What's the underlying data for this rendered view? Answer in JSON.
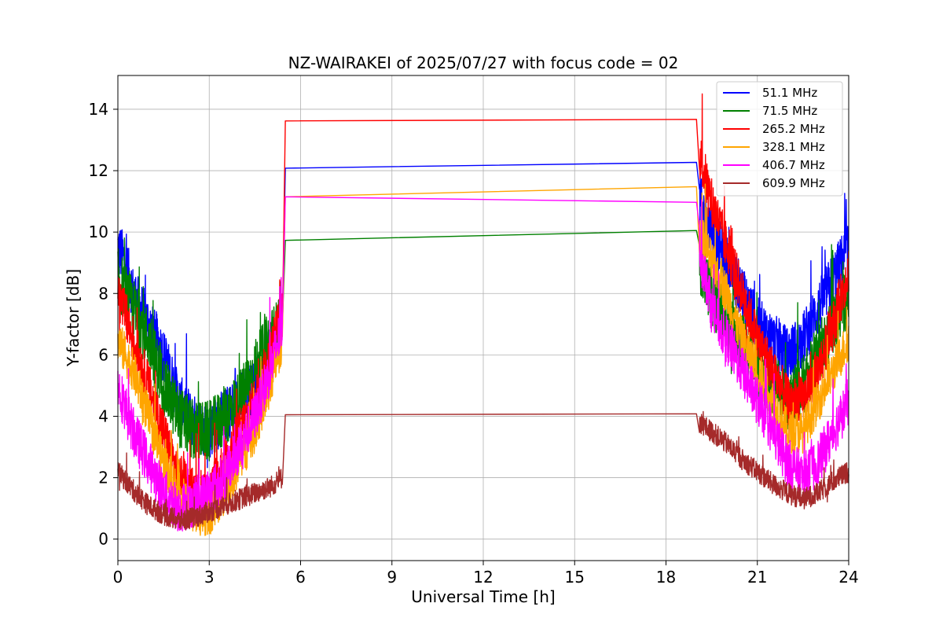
{
  "chart_data": {
    "type": "line",
    "title": "NZ-WAIRAKEI of 2025/07/27 with focus code = 02",
    "xlabel": "Universal Time [h]",
    "ylabel": "Y-factor [dB]",
    "xlim": [
      0,
      24
    ],
    "ylim": [
      -0.7,
      15.1
    ],
    "xticks": [
      0,
      3,
      6,
      9,
      12,
      15,
      18,
      21,
      24
    ],
    "yticks": [
      0,
      2,
      4,
      6,
      8,
      10,
      12,
      14
    ],
    "grid": true,
    "legend_position": "top-right",
    "series": [
      {
        "name": " 51.1 MHz",
        "color": "#0000ff",
        "amp": 0.9,
        "x": [
          0,
          0.25,
          0.5,
          1,
          1.5,
          2,
          2.5,
          3,
          3.5,
          4,
          4.5,
          5,
          5.4,
          5.5,
          19.0,
          19.1,
          19.5,
          20,
          20.5,
          21,
          21.5,
          22,
          22.5,
          23,
          23.5,
          24
        ],
        "y": [
          9.5,
          9.0,
          8.0,
          7.0,
          6.0,
          4.5,
          3.8,
          3.5,
          4.0,
          4.5,
          5.0,
          6.0,
          7.5,
          12.08,
          12.27,
          11.0,
          10.0,
          9.0,
          8.0,
          7.0,
          6.5,
          6.0,
          6.5,
          7.5,
          8.5,
          9.5
        ]
      },
      {
        "name": " 71.5 MHz",
        "color": "#008000",
        "amp": 1.0,
        "x": [
          0,
          0.5,
          1,
          1.5,
          2,
          2.5,
          3,
          3.5,
          4,
          4.5,
          5,
          5.4,
          5.5,
          19.0,
          19.1,
          19.5,
          20,
          20.5,
          21,
          21.5,
          22,
          22.5,
          23,
          23.5,
          24
        ],
        "y": [
          8.5,
          7.5,
          6.5,
          5.0,
          4.0,
          3.5,
          3.5,
          4.0,
          4.5,
          5.5,
          6.5,
          7.0,
          9.73,
          10.05,
          9.0,
          8.0,
          7.0,
          6.5,
          5.5,
          5.0,
          4.5,
          5.0,
          6.0,
          7.0,
          8.0
        ]
      },
      {
        "name": "265.2 MHz",
        "color": "#ff0000",
        "amp": 0.8,
        "x": [
          0,
          0.5,
          1,
          1.5,
          2,
          2.5,
          3,
          3.5,
          4,
          4.5,
          5,
          5.4,
          5.5,
          19.0,
          19.1,
          19.5,
          20,
          20.5,
          21,
          21.5,
          22,
          22.5,
          23,
          23.5,
          24
        ],
        "y": [
          8.0,
          6.5,
          5.0,
          3.5,
          2.0,
          1.5,
          1.5,
          2.5,
          3.5,
          4.5,
          6.0,
          7.5,
          13.62,
          13.67,
          12.5,
          11.0,
          9.5,
          8.0,
          6.5,
          5.5,
          4.5,
          4.5,
          5.5,
          7.0,
          8.8
        ]
      },
      {
        "name": "328.1 MHz",
        "color": "#ffa500",
        "amp": 0.7,
        "x": [
          0,
          0.5,
          1,
          1.5,
          2,
          2.5,
          3,
          3.5,
          4,
          4.5,
          5,
          5.4,
          5.5,
          19.0,
          19.1,
          19.5,
          20,
          20.5,
          21,
          21.5,
          22,
          22.5,
          23,
          23.5,
          24
        ],
        "y": [
          6.5,
          5.5,
          4.0,
          2.5,
          1.5,
          0.8,
          0.8,
          1.5,
          2.5,
          3.5,
          5.0,
          6.5,
          11.15,
          11.48,
          10.0,
          9.0,
          8.0,
          6.5,
          5.5,
          4.5,
          3.5,
          3.5,
          4.5,
          5.5,
          6.5
        ]
      },
      {
        "name": "406.7 MHz",
        "color": "#ff00ff",
        "amp": 0.8,
        "x": [
          0,
          0.5,
          1,
          1.5,
          2,
          2.5,
          3,
          3.5,
          4,
          4.5,
          5,
          5.4,
          5.5,
          19.0,
          19.1,
          19.5,
          20,
          20.5,
          21,
          21.5,
          22,
          22.5,
          23,
          23.5,
          24
        ],
        "y": [
          5.0,
          3.5,
          2.5,
          1.5,
          1.0,
          1.2,
          1.5,
          2.0,
          3.0,
          4.0,
          5.5,
          7.0,
          11.15,
          10.97,
          9.5,
          7.5,
          6.5,
          5.5,
          4.5,
          3.5,
          2.5,
          2.0,
          2.5,
          3.5,
          4.5
        ]
      },
      {
        "name": "609.9 MHz",
        "color": "#a52a2a",
        "amp": 0.35,
        "x": [
          0,
          0.5,
          1,
          1.5,
          2,
          2.5,
          3,
          3.5,
          4,
          4.5,
          5,
          5.4,
          5.5,
          19.0,
          19.1,
          19.5,
          20,
          20.5,
          21,
          21.5,
          22,
          22.5,
          23,
          23.5,
          24
        ],
        "y": [
          2.2,
          1.6,
          1.1,
          0.8,
          0.6,
          0.7,
          0.9,
          1.1,
          1.3,
          1.5,
          1.7,
          2.0,
          4.05,
          4.08,
          3.8,
          3.5,
          3.1,
          2.6,
          2.2,
          1.8,
          1.5,
          1.3,
          1.5,
          1.9,
          2.2
        ]
      }
    ]
  }
}
